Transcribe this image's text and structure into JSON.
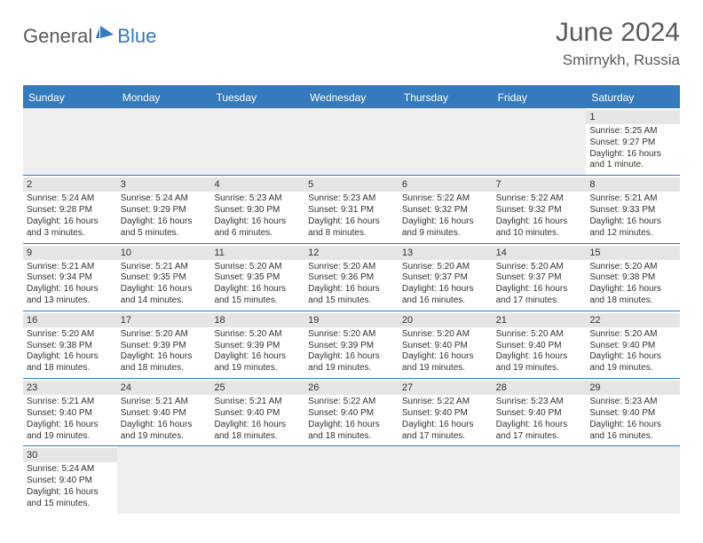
{
  "logo": {
    "general": "General",
    "blue": "Blue"
  },
  "title": {
    "monthYear": "June 2024",
    "location": "Smirnykh, Russia"
  },
  "colors": {
    "headerBg": "#357abd",
    "headerText": "#ffffff",
    "dateRowBg": "#e5e5e5",
    "emptyBg": "#efefef",
    "text": "#333333"
  },
  "dayHeaders": [
    "Sunday",
    "Monday",
    "Tuesday",
    "Wednesday",
    "Thursday",
    "Friday",
    "Saturday"
  ],
  "weeks": [
    [
      null,
      null,
      null,
      null,
      null,
      null,
      {
        "date": "1",
        "sunrise": "Sunrise: 5:25 AM",
        "sunset": "Sunset: 9:27 PM",
        "daylight1": "Daylight: 16 hours",
        "daylight2": "and 1 minute."
      }
    ],
    [
      {
        "date": "2",
        "sunrise": "Sunrise: 5:24 AM",
        "sunset": "Sunset: 9:28 PM",
        "daylight1": "Daylight: 16 hours",
        "daylight2": "and 3 minutes."
      },
      {
        "date": "3",
        "sunrise": "Sunrise: 5:24 AM",
        "sunset": "Sunset: 9:29 PM",
        "daylight1": "Daylight: 16 hours",
        "daylight2": "and 5 minutes."
      },
      {
        "date": "4",
        "sunrise": "Sunrise: 5:23 AM",
        "sunset": "Sunset: 9:30 PM",
        "daylight1": "Daylight: 16 hours",
        "daylight2": "and 6 minutes."
      },
      {
        "date": "5",
        "sunrise": "Sunrise: 5:23 AM",
        "sunset": "Sunset: 9:31 PM",
        "daylight1": "Daylight: 16 hours",
        "daylight2": "and 8 minutes."
      },
      {
        "date": "6",
        "sunrise": "Sunrise: 5:22 AM",
        "sunset": "Sunset: 9:32 PM",
        "daylight1": "Daylight: 16 hours",
        "daylight2": "and 9 minutes."
      },
      {
        "date": "7",
        "sunrise": "Sunrise: 5:22 AM",
        "sunset": "Sunset: 9:32 PM",
        "daylight1": "Daylight: 16 hours",
        "daylight2": "and 10 minutes."
      },
      {
        "date": "8",
        "sunrise": "Sunrise: 5:21 AM",
        "sunset": "Sunset: 9:33 PM",
        "daylight1": "Daylight: 16 hours",
        "daylight2": "and 12 minutes."
      }
    ],
    [
      {
        "date": "9",
        "sunrise": "Sunrise: 5:21 AM",
        "sunset": "Sunset: 9:34 PM",
        "daylight1": "Daylight: 16 hours",
        "daylight2": "and 13 minutes."
      },
      {
        "date": "10",
        "sunrise": "Sunrise: 5:21 AM",
        "sunset": "Sunset: 9:35 PM",
        "daylight1": "Daylight: 16 hours",
        "daylight2": "and 14 minutes."
      },
      {
        "date": "11",
        "sunrise": "Sunrise: 5:20 AM",
        "sunset": "Sunset: 9:35 PM",
        "daylight1": "Daylight: 16 hours",
        "daylight2": "and 15 minutes."
      },
      {
        "date": "12",
        "sunrise": "Sunrise: 5:20 AM",
        "sunset": "Sunset: 9:36 PM",
        "daylight1": "Daylight: 16 hours",
        "daylight2": "and 15 minutes."
      },
      {
        "date": "13",
        "sunrise": "Sunrise: 5:20 AM",
        "sunset": "Sunset: 9:37 PM",
        "daylight1": "Daylight: 16 hours",
        "daylight2": "and 16 minutes."
      },
      {
        "date": "14",
        "sunrise": "Sunrise: 5:20 AM",
        "sunset": "Sunset: 9:37 PM",
        "daylight1": "Daylight: 16 hours",
        "daylight2": "and 17 minutes."
      },
      {
        "date": "15",
        "sunrise": "Sunrise: 5:20 AM",
        "sunset": "Sunset: 9:38 PM",
        "daylight1": "Daylight: 16 hours",
        "daylight2": "and 18 minutes."
      }
    ],
    [
      {
        "date": "16",
        "sunrise": "Sunrise: 5:20 AM",
        "sunset": "Sunset: 9:38 PM",
        "daylight1": "Daylight: 16 hours",
        "daylight2": "and 18 minutes."
      },
      {
        "date": "17",
        "sunrise": "Sunrise: 5:20 AM",
        "sunset": "Sunset: 9:39 PM",
        "daylight1": "Daylight: 16 hours",
        "daylight2": "and 18 minutes."
      },
      {
        "date": "18",
        "sunrise": "Sunrise: 5:20 AM",
        "sunset": "Sunset: 9:39 PM",
        "daylight1": "Daylight: 16 hours",
        "daylight2": "and 19 minutes."
      },
      {
        "date": "19",
        "sunrise": "Sunrise: 5:20 AM",
        "sunset": "Sunset: 9:39 PM",
        "daylight1": "Daylight: 16 hours",
        "daylight2": "and 19 minutes."
      },
      {
        "date": "20",
        "sunrise": "Sunrise: 5:20 AM",
        "sunset": "Sunset: 9:40 PM",
        "daylight1": "Daylight: 16 hours",
        "daylight2": "and 19 minutes."
      },
      {
        "date": "21",
        "sunrise": "Sunrise: 5:20 AM",
        "sunset": "Sunset: 9:40 PM",
        "daylight1": "Daylight: 16 hours",
        "daylight2": "and 19 minutes."
      },
      {
        "date": "22",
        "sunrise": "Sunrise: 5:20 AM",
        "sunset": "Sunset: 9:40 PM",
        "daylight1": "Daylight: 16 hours",
        "daylight2": "and 19 minutes."
      }
    ],
    [
      {
        "date": "23",
        "sunrise": "Sunrise: 5:21 AM",
        "sunset": "Sunset: 9:40 PM",
        "daylight1": "Daylight: 16 hours",
        "daylight2": "and 19 minutes."
      },
      {
        "date": "24",
        "sunrise": "Sunrise: 5:21 AM",
        "sunset": "Sunset: 9:40 PM",
        "daylight1": "Daylight: 16 hours",
        "daylight2": "and 19 minutes."
      },
      {
        "date": "25",
        "sunrise": "Sunrise: 5:21 AM",
        "sunset": "Sunset: 9:40 PM",
        "daylight1": "Daylight: 16 hours",
        "daylight2": "and 18 minutes."
      },
      {
        "date": "26",
        "sunrise": "Sunrise: 5:22 AM",
        "sunset": "Sunset: 9:40 PM",
        "daylight1": "Daylight: 16 hours",
        "daylight2": "and 18 minutes."
      },
      {
        "date": "27",
        "sunrise": "Sunrise: 5:22 AM",
        "sunset": "Sunset: 9:40 PM",
        "daylight1": "Daylight: 16 hours",
        "daylight2": "and 17 minutes."
      },
      {
        "date": "28",
        "sunrise": "Sunrise: 5:23 AM",
        "sunset": "Sunset: 9:40 PM",
        "daylight1": "Daylight: 16 hours",
        "daylight2": "and 17 minutes."
      },
      {
        "date": "29",
        "sunrise": "Sunrise: 5:23 AM",
        "sunset": "Sunset: 9:40 PM",
        "daylight1": "Daylight: 16 hours",
        "daylight2": "and 16 minutes."
      }
    ],
    [
      {
        "date": "30",
        "sunrise": "Sunrise: 5:24 AM",
        "sunset": "Sunset: 9:40 PM",
        "daylight1": "Daylight: 16 hours",
        "daylight2": "and 15 minutes."
      },
      null,
      null,
      null,
      null,
      null,
      null
    ]
  ]
}
